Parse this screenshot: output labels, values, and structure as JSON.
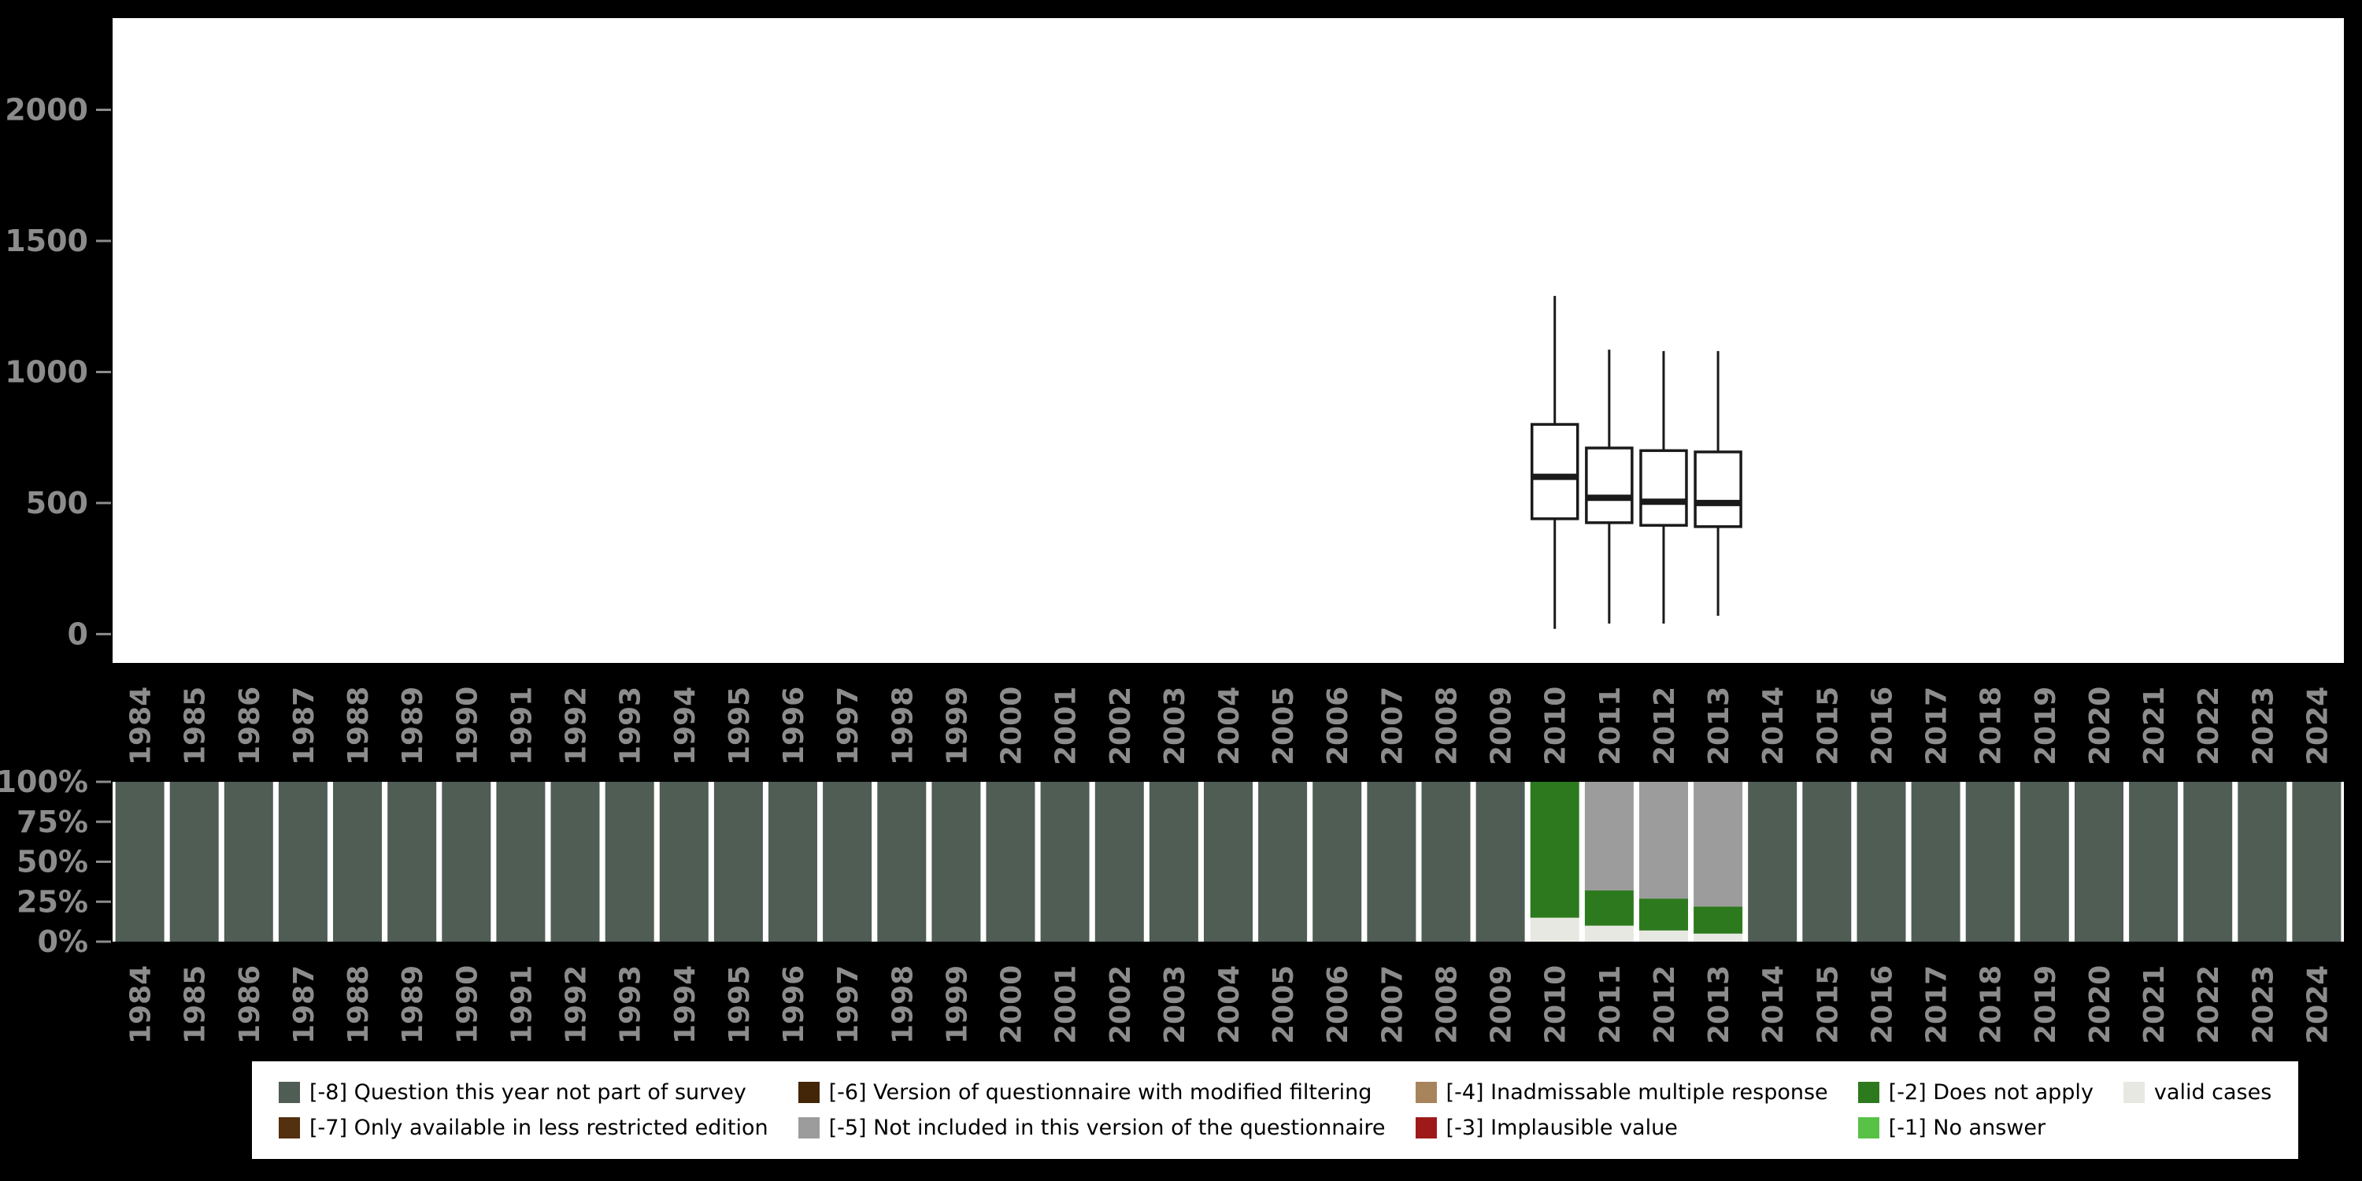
{
  "page": {
    "background": "#000000",
    "plot_background": "#ffffff",
    "axis_text_color": "#8c8c8c"
  },
  "chart_data": [
    {
      "type": "boxplot",
      "title": "",
      "xlabel": "",
      "ylabel": "",
      "x_categories": [
        "1984",
        "1985",
        "1986",
        "1987",
        "1988",
        "1989",
        "1990",
        "1991",
        "1992",
        "1993",
        "1994",
        "1995",
        "1996",
        "1997",
        "1998",
        "1999",
        "2000",
        "2001",
        "2002",
        "2003",
        "2004",
        "2005",
        "2006",
        "2007",
        "2008",
        "2009",
        "2010",
        "2011",
        "2012",
        "2013",
        "2014",
        "2015",
        "2016",
        "2017",
        "2018",
        "2019",
        "2020",
        "2021",
        "2022",
        "2023",
        "2024"
      ],
      "yticks": [
        0,
        500,
        1000,
        1500,
        2000
      ],
      "ylim": [
        -110,
        2350
      ],
      "boxes": [
        {
          "year": "2010",
          "min": 20,
          "q1": 440,
          "median": 600,
          "q3": 800,
          "max": 1290
        },
        {
          "year": "2011",
          "min": 40,
          "q1": 425,
          "median": 520,
          "q3": 710,
          "max": 1085
        },
        {
          "year": "2012",
          "min": 40,
          "q1": 415,
          "median": 505,
          "q3": 700,
          "max": 1080
        },
        {
          "year": "2013",
          "min": 70,
          "q1": 410,
          "median": 500,
          "q3": 695,
          "max": 1080
        }
      ]
    },
    {
      "type": "stacked-bar-percent",
      "title": "",
      "x_categories": [
        "1984",
        "1985",
        "1986",
        "1987",
        "1988",
        "1989",
        "1990",
        "1991",
        "1992",
        "1993",
        "1994",
        "1995",
        "1996",
        "1997",
        "1998",
        "1999",
        "2000",
        "2001",
        "2002",
        "2003",
        "2004",
        "2005",
        "2006",
        "2007",
        "2008",
        "2009",
        "2010",
        "2011",
        "2012",
        "2013",
        "2014",
        "2015",
        "2016",
        "2017",
        "2018",
        "2019",
        "2020",
        "2021",
        "2022",
        "2023",
        "2024"
      ],
      "yticks": [
        0,
        25,
        50,
        75,
        100
      ],
      "default_segments": [
        {
          "code": "-8",
          "pct": 100
        }
      ],
      "overrides": {
        "2010": [
          {
            "code": "valid",
            "pct": 15
          },
          {
            "code": "-2",
            "pct": 85
          }
        ],
        "2011": [
          {
            "code": "valid",
            "pct": 10
          },
          {
            "code": "-2",
            "pct": 22
          },
          {
            "code": "-5",
            "pct": 68
          }
        ],
        "2012": [
          {
            "code": "valid",
            "pct": 7
          },
          {
            "code": "-2",
            "pct": 20
          },
          {
            "code": "-5",
            "pct": 73
          }
        ],
        "2013": [
          {
            "code": "valid",
            "pct": 5
          },
          {
            "code": "-2",
            "pct": 17
          },
          {
            "code": "-5",
            "pct": 78
          }
        ]
      }
    }
  ],
  "codes": {
    "-8": {
      "label": "[-8] Question this year not part of survey",
      "color": "#4f5d55"
    },
    "-7": {
      "label": "[-7] Only available in less restricted edition",
      "color": "#53300f"
    },
    "-6": {
      "label": "[-6] Version of questionnaire with modified filtering",
      "color": "#432508"
    },
    "-5": {
      "label": "[-5] Not included in this version of the questionnaire",
      "color": "#9c9c9c"
    },
    "-4": {
      "label": "[-4] Inadmissable multiple response",
      "color": "#a8845c"
    },
    "-3": {
      "label": "[-3] Implausible value",
      "color": "#9e1a1a"
    },
    "-2": {
      "label": "[-2] Does not apply",
      "color": "#2d7a1e"
    },
    "-1": {
      "label": "[-1] No answer",
      "color": "#58c246"
    },
    "valid": {
      "label": "valid cases",
      "color": "#e8e8e2"
    }
  },
  "legend": {
    "order": [
      "-8",
      "-7",
      "-6",
      "-5",
      "-4",
      "-3",
      "-2",
      "-1",
      "valid"
    ]
  }
}
